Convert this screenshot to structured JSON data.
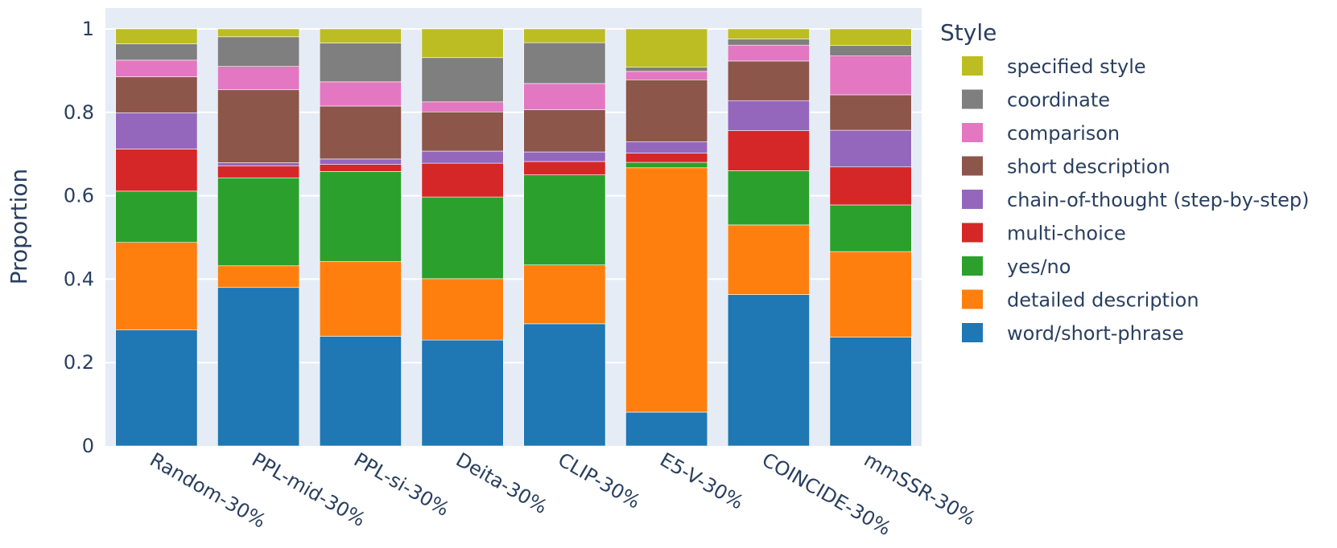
{
  "chart_data": {
    "type": "bar",
    "stacked": true,
    "title": "",
    "xlabel": "",
    "ylabel": "Proportion",
    "ylim": [
      0,
      1.05
    ],
    "yticks": [
      0,
      0.2,
      0.4,
      0.6,
      0.8,
      1
    ],
    "ytick_labels": [
      "0",
      "0.2",
      "0.4",
      "0.6",
      "0.8",
      "1"
    ],
    "grid": true,
    "legend_title": "Style",
    "legend_position": "right",
    "categories": [
      "Random-30%",
      "PPL-mid-30%",
      "PPL-si-30%",
      "Deita-30%",
      "CLIP-30%",
      "E5-V-30%",
      "COINCIDE-30%",
      "mmSSR-30%"
    ],
    "series": [
      {
        "name": "word/short-phrase",
        "color": "#1f77b4",
        "values": [
          0.278,
          0.38,
          0.263,
          0.254,
          0.293,
          0.081,
          0.363,
          0.261
        ]
      },
      {
        "name": "detailed description",
        "color": "#ff7f0e",
        "values": [
          0.21,
          0.052,
          0.179,
          0.147,
          0.141,
          0.586,
          0.167,
          0.205
        ]
      },
      {
        "name": "yes/no",
        "color": "#2ca02c",
        "values": [
          0.123,
          0.211,
          0.216,
          0.196,
          0.216,
          0.013,
          0.13,
          0.112
        ]
      },
      {
        "name": "multi-choice",
        "color": "#d62728",
        "values": [
          0.101,
          0.028,
          0.017,
          0.081,
          0.032,
          0.022,
          0.096,
          0.091
        ]
      },
      {
        "name": "chain-of-thought (step-by-step)",
        "color": "#9467bd",
        "values": [
          0.087,
          0.008,
          0.013,
          0.029,
          0.023,
          0.027,
          0.072,
          0.088
        ]
      },
      {
        "name": "short description",
        "color": "#8c564b",
        "values": [
          0.086,
          0.175,
          0.127,
          0.094,
          0.101,
          0.149,
          0.095,
          0.085
        ]
      },
      {
        "name": "comparison",
        "color": "#e377c2",
        "values": [
          0.04,
          0.056,
          0.058,
          0.024,
          0.063,
          0.02,
          0.038,
          0.093
        ]
      },
      {
        "name": "coordinate",
        "color": "#7f7f7f",
        "values": [
          0.039,
          0.071,
          0.093,
          0.106,
          0.098,
          0.01,
          0.015,
          0.025
        ]
      },
      {
        "name": "specified style",
        "color": "#bcbd22",
        "values": [
          0.036,
          0.019,
          0.034,
          0.069,
          0.033,
          0.092,
          0.024,
          0.04
        ]
      }
    ]
  }
}
